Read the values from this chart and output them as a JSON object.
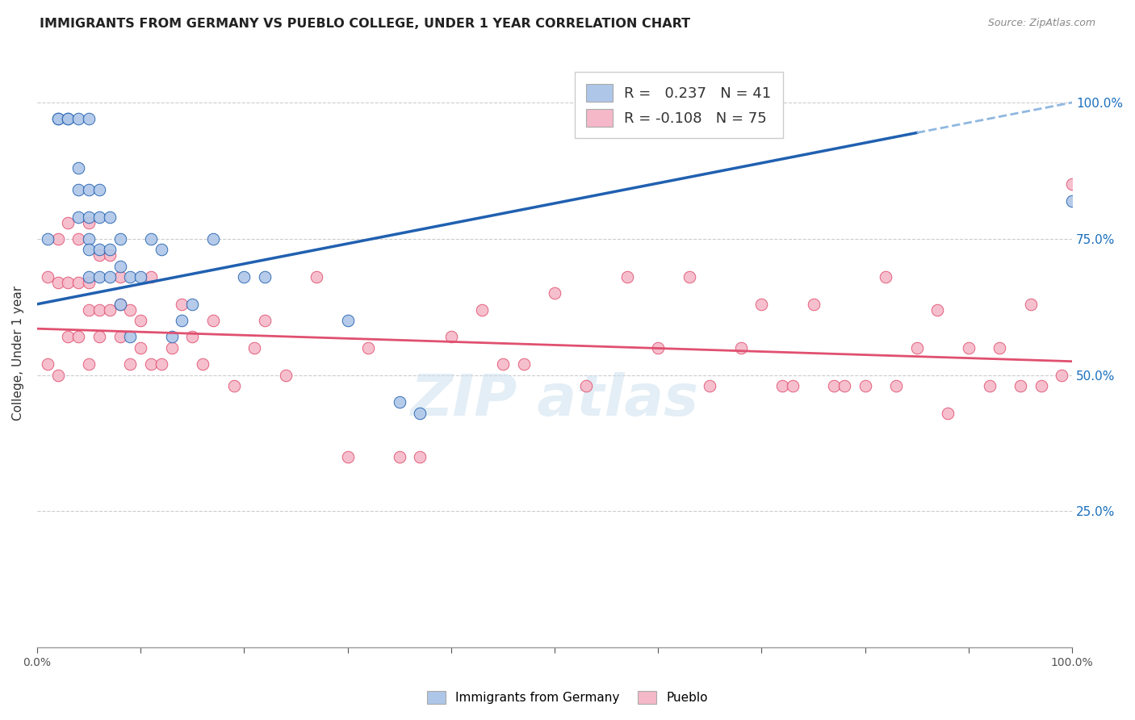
{
  "title": "IMMIGRANTS FROM GERMANY VS PUEBLO COLLEGE, UNDER 1 YEAR CORRELATION CHART",
  "source": "Source: ZipAtlas.com",
  "ylabel": "College, Under 1 year",
  "r_germany": 0.237,
  "n_germany": 41,
  "r_pueblo": -0.108,
  "n_pueblo": 75,
  "legend_label_germany": "Immigrants from Germany",
  "legend_label_pueblo": "Pueblo",
  "color_germany": "#aec6e8",
  "color_pueblo": "#f5b8c8",
  "color_line_germany": "#2060b0",
  "color_line_pueblo": "#e05070",
  "color_line_germany_dash": "#90b8e0",
  "ytick_labels": [
    "25.0%",
    "50.0%",
    "75.0%",
    "100.0%"
  ],
  "ytick_vals": [
    0.25,
    0.5,
    0.75,
    1.0
  ],
  "xlim": [
    0.0,
    1.0
  ],
  "ylim": [
    0.0,
    1.08
  ],
  "germany_line_x0": 0.0,
  "germany_line_y0": 0.63,
  "germany_line_x1": 1.0,
  "germany_line_y1": 1.0,
  "germany_line_solid_end": 0.85,
  "pueblo_line_x0": 0.0,
  "pueblo_line_y0": 0.585,
  "pueblo_line_x1": 1.0,
  "pueblo_line_y1": 0.525,
  "germany_x": [
    0.01,
    0.02,
    0.02,
    0.03,
    0.03,
    0.04,
    0.04,
    0.04,
    0.04,
    0.05,
    0.05,
    0.05,
    0.05,
    0.05,
    0.05,
    0.06,
    0.06,
    0.06,
    0.06,
    0.07,
    0.07,
    0.07,
    0.08,
    0.08,
    0.08,
    0.09,
    0.09,
    0.1,
    0.11,
    0.12,
    0.13,
    0.14,
    0.15,
    0.17,
    0.2,
    0.22,
    0.3,
    0.35,
    0.37,
    0.68,
    1.0
  ],
  "germany_y": [
    0.75,
    0.97,
    0.97,
    0.97,
    0.97,
    0.97,
    0.88,
    0.84,
    0.79,
    0.97,
    0.84,
    0.79,
    0.75,
    0.73,
    0.68,
    0.84,
    0.79,
    0.73,
    0.68,
    0.79,
    0.73,
    0.68,
    0.75,
    0.7,
    0.63,
    0.68,
    0.57,
    0.68,
    0.75,
    0.73,
    0.57,
    0.6,
    0.63,
    0.75,
    0.68,
    0.68,
    0.6,
    0.45,
    0.43,
    0.97,
    0.82
  ],
  "pueblo_x": [
    0.01,
    0.01,
    0.02,
    0.02,
    0.02,
    0.03,
    0.03,
    0.03,
    0.04,
    0.04,
    0.04,
    0.05,
    0.05,
    0.05,
    0.05,
    0.06,
    0.06,
    0.06,
    0.07,
    0.07,
    0.08,
    0.08,
    0.08,
    0.09,
    0.09,
    0.1,
    0.1,
    0.11,
    0.11,
    0.12,
    0.13,
    0.14,
    0.15,
    0.16,
    0.17,
    0.19,
    0.21,
    0.22,
    0.24,
    0.27,
    0.3,
    0.32,
    0.35,
    0.37,
    0.4,
    0.43,
    0.45,
    0.47,
    0.5,
    0.53,
    0.57,
    0.6,
    0.63,
    0.65,
    0.68,
    0.7,
    0.72,
    0.73,
    0.75,
    0.77,
    0.78,
    0.8,
    0.82,
    0.83,
    0.85,
    0.87,
    0.88,
    0.9,
    0.92,
    0.93,
    0.95,
    0.96,
    0.97,
    0.99,
    1.0
  ],
  "pueblo_y": [
    0.68,
    0.52,
    0.75,
    0.67,
    0.5,
    0.78,
    0.67,
    0.57,
    0.75,
    0.67,
    0.57,
    0.78,
    0.67,
    0.62,
    0.52,
    0.72,
    0.62,
    0.57,
    0.72,
    0.62,
    0.68,
    0.63,
    0.57,
    0.62,
    0.52,
    0.6,
    0.55,
    0.68,
    0.52,
    0.52,
    0.55,
    0.63,
    0.57,
    0.52,
    0.6,
    0.48,
    0.55,
    0.6,
    0.5,
    0.68,
    0.35,
    0.55,
    0.35,
    0.35,
    0.57,
    0.62,
    0.52,
    0.52,
    0.65,
    0.48,
    0.68,
    0.55,
    0.68,
    0.48,
    0.55,
    0.63,
    0.48,
    0.48,
    0.63,
    0.48,
    0.48,
    0.48,
    0.68,
    0.48,
    0.55,
    0.62,
    0.43,
    0.55,
    0.48,
    0.55,
    0.48,
    0.63,
    0.48,
    0.5,
    0.85
  ]
}
